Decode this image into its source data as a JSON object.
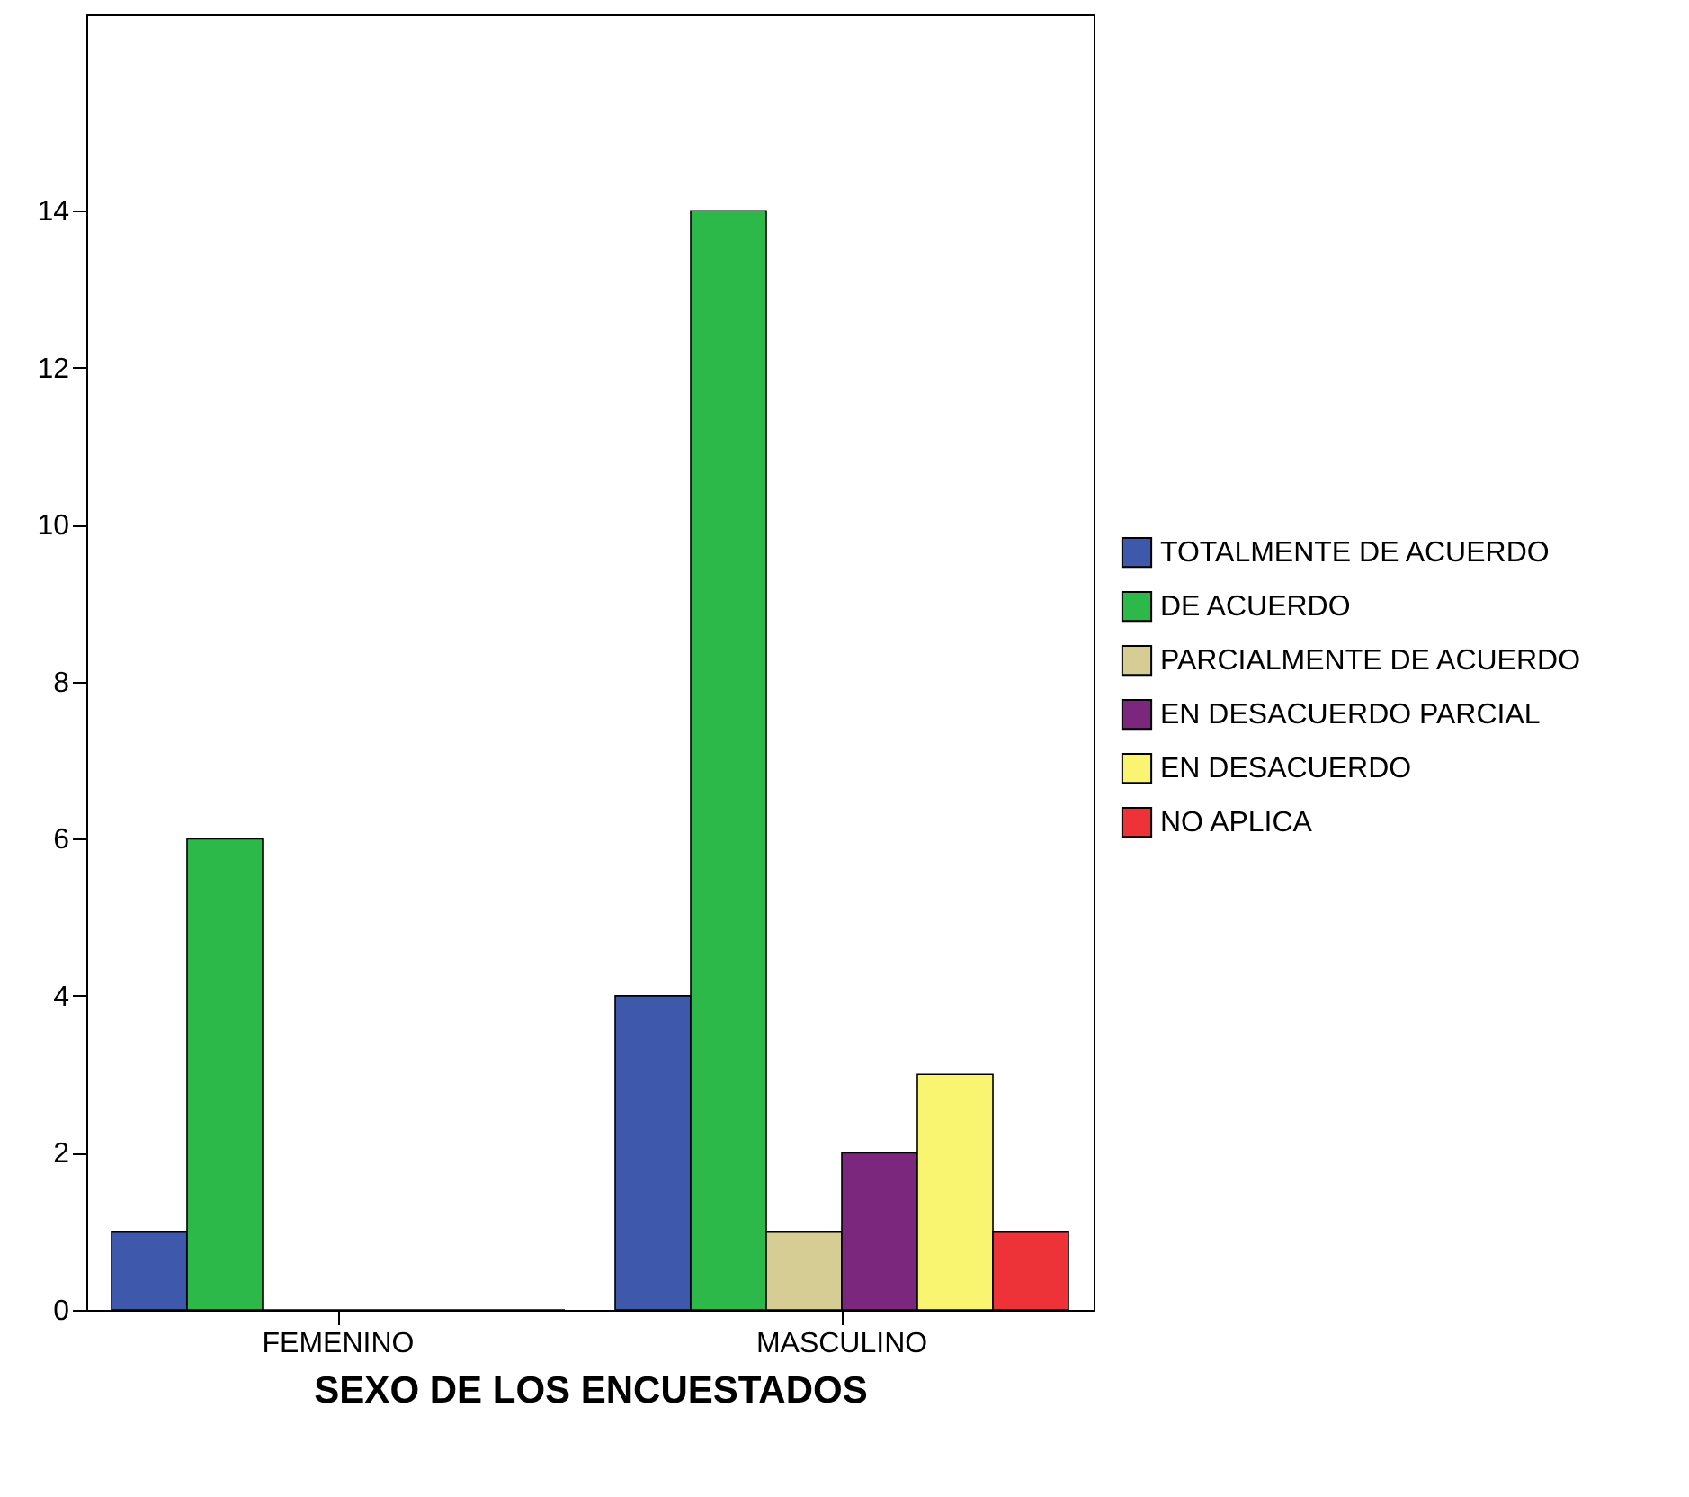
{
  "chart_data": {
    "type": "bar",
    "xlabel": "SEXO DE LOS ENCUESTADOS",
    "categories": [
      "FEMENINO",
      "MASCULINO"
    ],
    "series": [
      {
        "name": "TOTALMENTE DE ACUERDO",
        "color": "#3e58ac",
        "values": [
          1,
          4
        ]
      },
      {
        "name": "DE ACUERDO",
        "color": "#2db84a",
        "values": [
          6,
          14
        ]
      },
      {
        "name": "PARCIALMENTE DE ACUERDO",
        "color": "#d6cd94",
        "values": [
          0,
          1
        ]
      },
      {
        "name": "EN DESACUERDO PARCIAL",
        "color": "#7b277d",
        "values": [
          0,
          2
        ]
      },
      {
        "name": "EN DESACUERDO",
        "color": "#f9f571",
        "values": [
          0,
          3
        ]
      },
      {
        "name": "NO APLICA",
        "color": "#ee3338",
        "values": [
          0,
          1
        ]
      }
    ],
    "ylim": [
      0,
      16.5
    ],
    "yticks": [
      0,
      2,
      4,
      6,
      8,
      10,
      12,
      14
    ],
    "grid": false,
    "legend": "right"
  }
}
